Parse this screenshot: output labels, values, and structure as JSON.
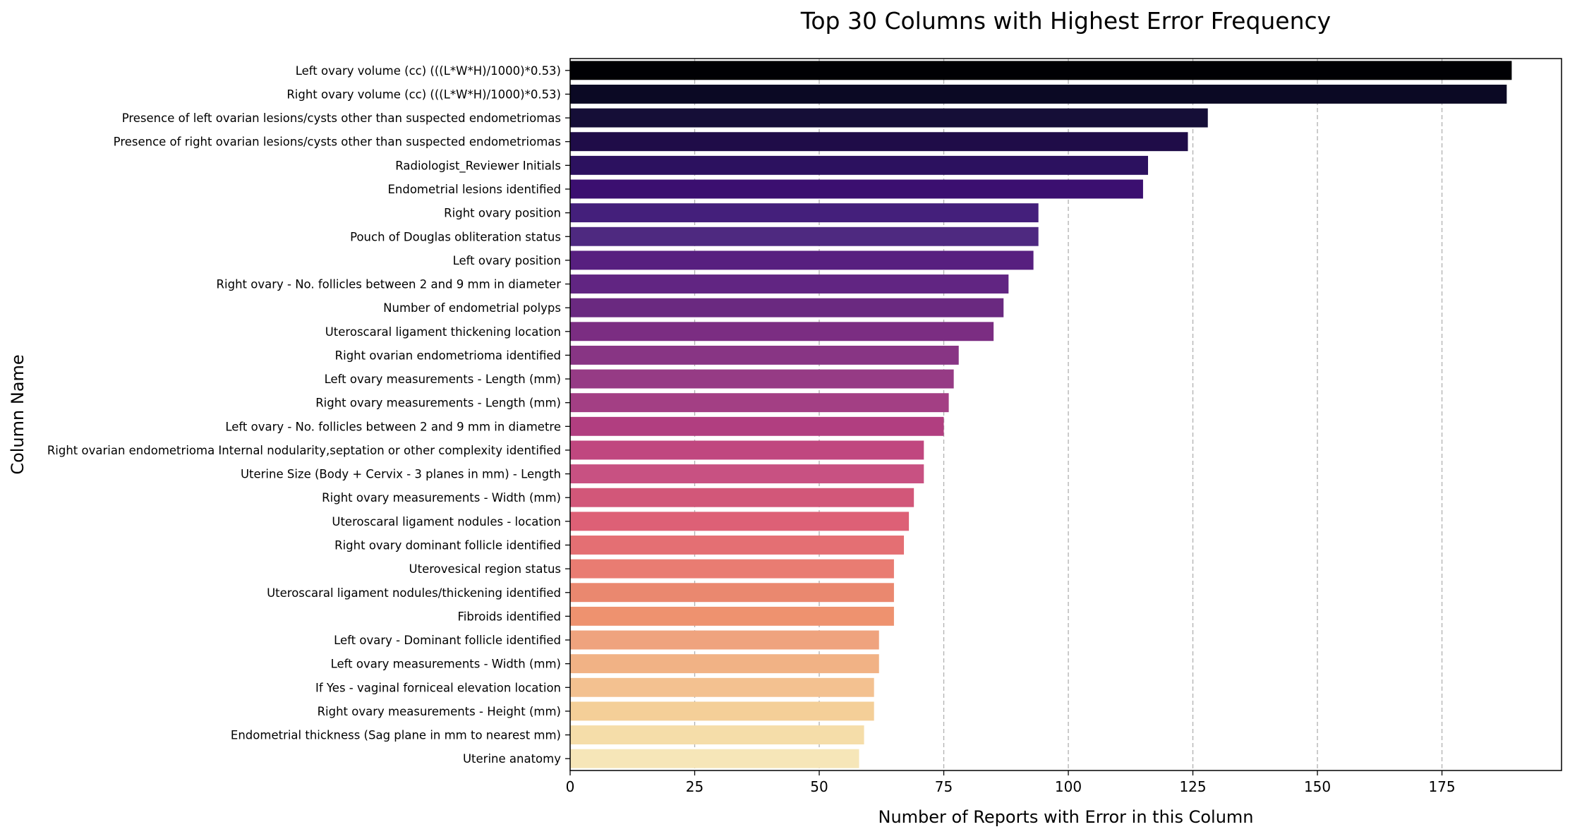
{
  "chart_data": {
    "type": "bar",
    "orientation": "horizontal",
    "title": "Top 30 Columns with Highest Error Frequency",
    "xlabel": "Number of Reports with Error in this Column",
    "ylabel": "Column Name",
    "xlim": [
      0,
      199
    ],
    "xticks": [
      0,
      25,
      50,
      75,
      100,
      125,
      150,
      175
    ],
    "grid": "x-dashed",
    "colormap": "magma",
    "categories": [
      "Left ovary volume (cc) (((L*W*H)/1000)*0.53)",
      "Right ovary volume (cc) (((L*W*H)/1000)*0.53)",
      "Presence of left ovarian lesions/cysts other than suspected endometriomas",
      "Presence of right ovarian lesions/cysts other than suspected endometriomas",
      "Radiologist_Reviewer Initials",
      "Endometrial lesions identified",
      "Right ovary position",
      "Pouch of Douglas obliteration status",
      "Left ovary position",
      "Right ovary -  No. follicles between 2 and 9 mm in diameter",
      "Number of endometrial polyps",
      "Uteroscaral ligament thickening location",
      "Right ovarian endometrioma identified",
      "Left ovary measurements - Length (mm)",
      "Right ovary measurements - Length (mm)",
      "Left ovary - No. follicles between 2 and 9 mm in diametre",
      "Right ovarian endometrioma Internal nodularity,septation or other complexity identified",
      "Uterine Size (Body + Cervix - 3 planes in mm) - Length",
      "Right ovary measurements - Width (mm)",
      "Uteroscaral ligament nodules - location",
      "Right ovary dominant follicle identified",
      "Uterovesical region status",
      "Uteroscaral ligament nodules/thickening identified",
      "Fibroids identified",
      "Left ovary - Dominant follicle identified",
      "Left ovary measurements - Width (mm)",
      "If Yes - vaginal forniceal elevation location",
      "Right ovary measurements - Height (mm)",
      "Endometrial thickness (Sag plane in mm to nearest mm)",
      "Uterine anatomy"
    ],
    "values": [
      189,
      188,
      128,
      124,
      116,
      115,
      94,
      94,
      93,
      88,
      87,
      85,
      78,
      77,
      76,
      75,
      71,
      71,
      69,
      68,
      67,
      65,
      65,
      65,
      62,
      62,
      61,
      61,
      59,
      58
    ],
    "colors": [
      "#000004",
      "#0b0924",
      "#150e37",
      "#1f0c48",
      "#2c115f",
      "#3b0f70",
      "#441f7b",
      "#4e2980",
      "#571f7f",
      "#612582",
      "#6a2980",
      "#7b2d82",
      "#883584",
      "#963b85",
      "#a33f84",
      "#b13e80",
      "#c0477f",
      "#c85182",
      "#d25779",
      "#dd6076",
      "#e46f73",
      "#e97c72",
      "#ea886f",
      "#ee926f",
      "#efa37e",
      "#f1b285",
      "#f3c190",
      "#f4cf98",
      "#f5dda9",
      "#f6e6b8"
    ]
  }
}
